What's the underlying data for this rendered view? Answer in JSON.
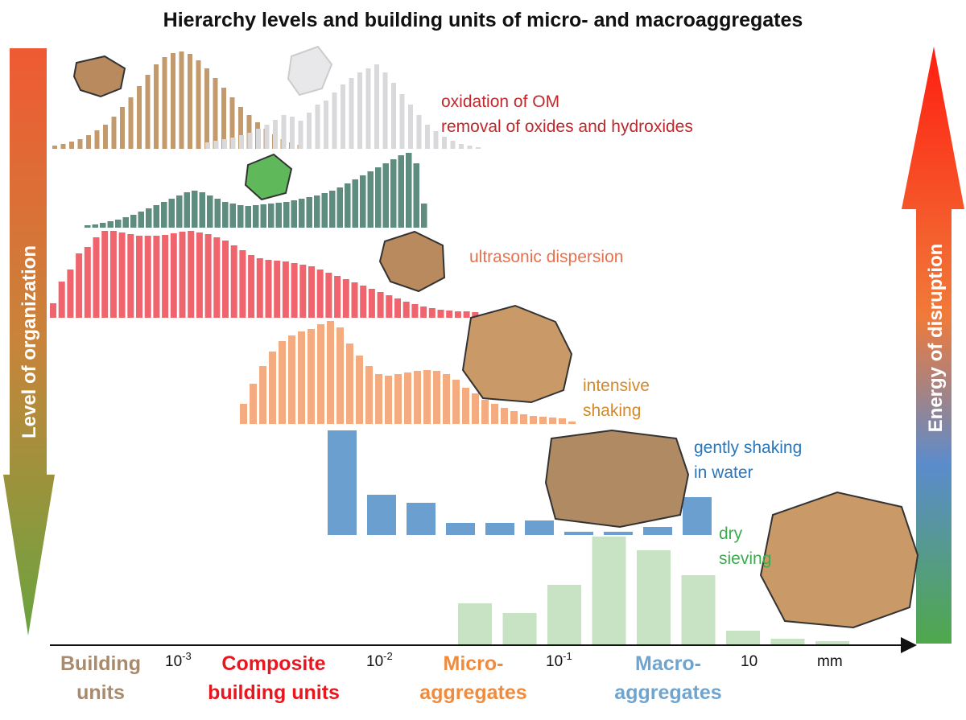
{
  "title": "Hierarchy levels and building units of micro- and macroaggregates",
  "left_arrow": "Level  of  organization",
  "right_arrow": "Energy  of  disruption",
  "rows": [
    {
      "color": "#c39a6b",
      "values": [
        4,
        6,
        9,
        12,
        17,
        23,
        30,
        40,
        52,
        64,
        78,
        92,
        105,
        114,
        119,
        121,
        118,
        110,
        100,
        88,
        76,
        64,
        52,
        42,
        33,
        25,
        18,
        12,
        8,
        5
      ]
    },
    {
      "color": "#d9d9dc",
      "values": [
        8,
        10,
        12,
        14,
        17,
        20,
        25,
        30,
        36,
        42,
        40,
        35,
        45,
        55,
        60,
        70,
        80,
        88,
        95,
        100,
        105,
        95,
        82,
        68,
        55,
        42,
        30,
        22,
        15,
        10,
        6,
        4,
        2
      ]
    },
    {
      "color": "#5e8c7e",
      "values": [
        3,
        4,
        6,
        8,
        10,
        13,
        16,
        20,
        24,
        28,
        32,
        36,
        40,
        44,
        46,
        44,
        40,
        36,
        32,
        30,
        28,
        27,
        28,
        29,
        30,
        31,
        32,
        34,
        36,
        38,
        40,
        43,
        46,
        50,
        55,
        60,
        65,
        70,
        75,
        80,
        85,
        90,
        93,
        80,
        30
      ]
    },
    {
      "color": "#f0656d",
      "values": [
        18,
        45,
        60,
        80,
        88,
        100,
        108,
        108,
        106,
        104,
        102,
        102,
        102,
        103,
        105,
        107,
        108,
        106,
        104,
        100,
        96,
        90,
        84,
        78,
        74,
        72,
        71,
        70,
        68,
        66,
        64,
        60,
        56,
        52,
        48,
        44,
        40,
        36,
        32,
        28,
        24,
        20,
        17,
        14,
        12,
        10,
        9,
        8,
        8,
        7
      ]
    },
    {
      "color": "#f4ab80",
      "values": [
        25,
        50,
        72,
        90,
        103,
        110,
        115,
        118,
        124,
        128,
        120,
        100,
        85,
        72,
        62,
        60,
        62,
        64,
        66,
        67,
        66,
        62,
        55,
        45,
        38,
        30,
        25,
        20,
        16,
        12,
        10,
        9,
        8,
        7,
        3
      ]
    },
    {
      "color": "#6a9fd0",
      "values": [
        130,
        50,
        40,
        15,
        15,
        18,
        4,
        4,
        10,
        47
      ]
    },
    {
      "color": "#c8e3c3",
      "values": [
        52,
        40,
        75,
        135,
        118,
        87,
        18,
        8,
        5
      ]
    }
  ],
  "methods": [
    {
      "lines": [
        "oxidation of OM",
        "removal of oxides and hydroxides"
      ],
      "color": "#c0282b"
    },
    {
      "lines": [
        "ultrasonic dispersion"
      ],
      "color": "#e8704d"
    },
    {
      "lines": [
        "intensive",
        "shaking"
      ],
      "color": "#d18a2e"
    },
    {
      "lines": [
        "gently shaking",
        "in water"
      ],
      "color": "#2a76b9"
    },
    {
      "lines": [
        "dry",
        "sieving"
      ],
      "color": "#3cab4e"
    }
  ],
  "axis_ticks": [
    {
      "base": "10",
      "exp": "-3"
    },
    {
      "base": "10",
      "exp": "-2"
    },
    {
      "base": "10",
      "exp": "-1"
    },
    {
      "base": "10"
    },
    {
      "base": "mm"
    }
  ],
  "classes": [
    {
      "lines": [
        "Building",
        "units"
      ],
      "color": "#a88a6c"
    },
    {
      "lines": [
        "Composite",
        "building units"
      ],
      "color": "#e8161e"
    },
    {
      "lines": [
        "Micro-",
        "aggregates"
      ],
      "color": "#f08a3c"
    },
    {
      "lines": [
        "Macro-",
        "aggregates"
      ],
      "color": "#6fa4cf"
    }
  ]
}
